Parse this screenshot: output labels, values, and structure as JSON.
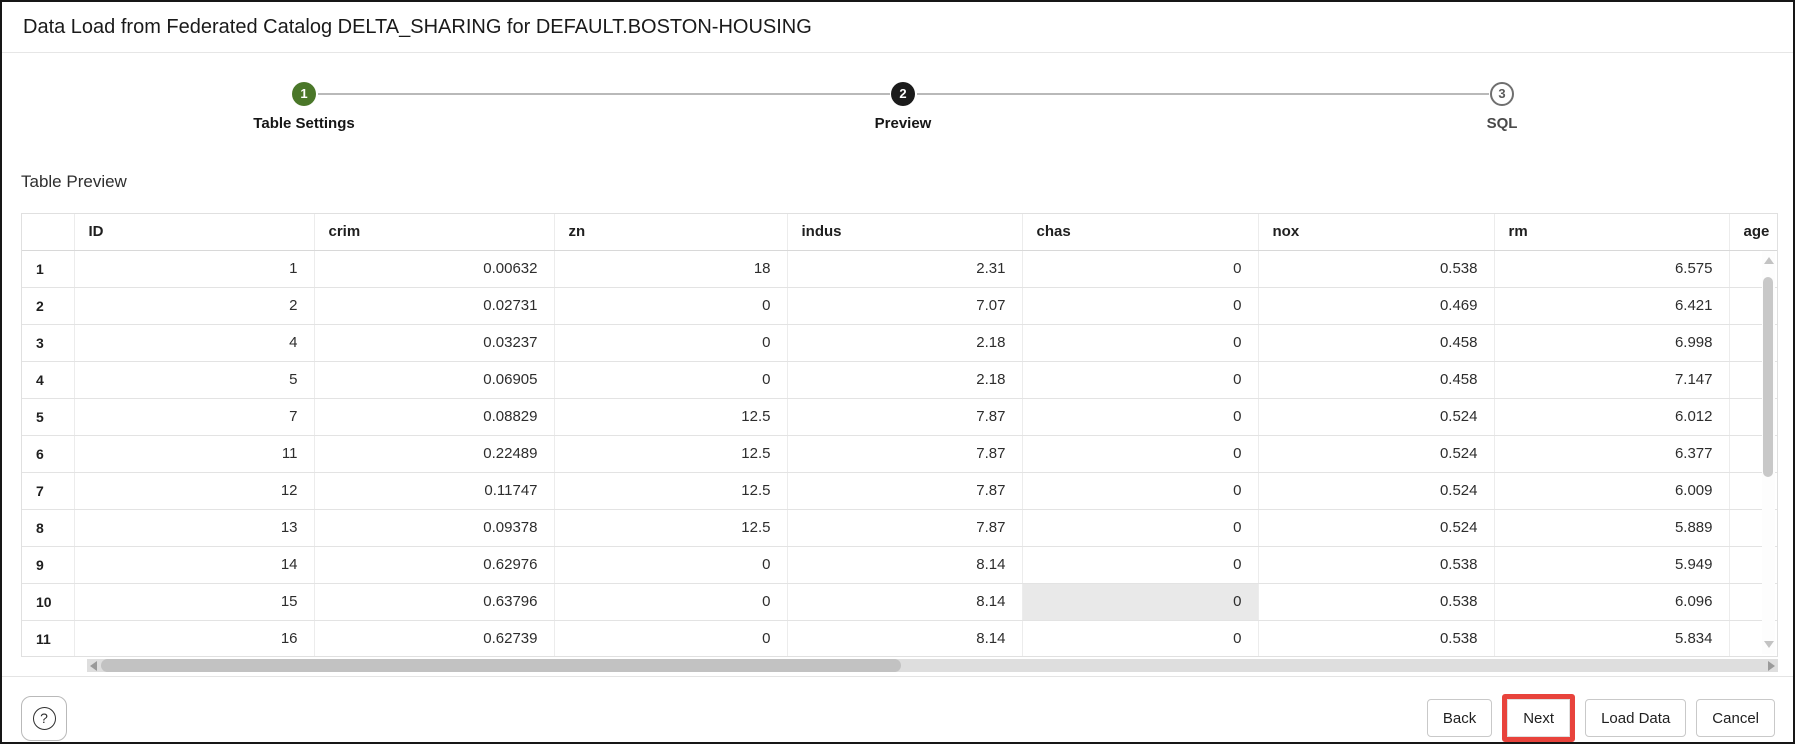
{
  "window": {
    "title": "Data Load from Federated Catalog DELTA_SHARING for DEFAULT.BOSTON-HOUSING"
  },
  "wizard": {
    "steps": [
      {
        "number": "1",
        "label": "Table Settings",
        "state": "complete"
      },
      {
        "number": "2",
        "label": "Preview",
        "state": "active"
      },
      {
        "number": "3",
        "label": "SQL",
        "state": "upcoming"
      }
    ]
  },
  "section": {
    "title": "Table Preview"
  },
  "table": {
    "columns": [
      "ID",
      "crim",
      "zn",
      "indus",
      "chas",
      "nox",
      "rm",
      "age"
    ],
    "rows": [
      {
        "n": "1",
        "cells": [
          "1",
          "0.00632",
          "18",
          "2.31",
          "0",
          "0.538",
          "6.575",
          ""
        ]
      },
      {
        "n": "2",
        "cells": [
          "2",
          "0.02731",
          "0",
          "7.07",
          "0",
          "0.469",
          "6.421",
          ""
        ]
      },
      {
        "n": "3",
        "cells": [
          "4",
          "0.03237",
          "0",
          "2.18",
          "0",
          "0.458",
          "6.998",
          ""
        ]
      },
      {
        "n": "4",
        "cells": [
          "5",
          "0.06905",
          "0",
          "2.18",
          "0",
          "0.458",
          "7.147",
          ""
        ]
      },
      {
        "n": "5",
        "cells": [
          "7",
          "0.08829",
          "12.5",
          "7.87",
          "0",
          "0.524",
          "6.012",
          ""
        ]
      },
      {
        "n": "6",
        "cells": [
          "11",
          "0.22489",
          "12.5",
          "7.87",
          "0",
          "0.524",
          "6.377",
          ""
        ]
      },
      {
        "n": "7",
        "cells": [
          "12",
          "0.11747",
          "12.5",
          "7.87",
          "0",
          "0.524",
          "6.009",
          ""
        ]
      },
      {
        "n": "8",
        "cells": [
          "13",
          "0.09378",
          "12.5",
          "7.87",
          "0",
          "0.524",
          "5.889",
          ""
        ]
      },
      {
        "n": "9",
        "cells": [
          "14",
          "0.62976",
          "0",
          "8.14",
          "0",
          "0.538",
          "5.949",
          ""
        ]
      },
      {
        "n": "10",
        "cells": [
          "15",
          "0.63796",
          "0",
          "8.14",
          "0",
          "0.538",
          "6.096",
          ""
        ]
      },
      {
        "n": "11",
        "cells": [
          "16",
          "0.62739",
          "0",
          "8.14",
          "0",
          "0.538",
          "5.834",
          ""
        ]
      }
    ],
    "highlighted_cell": {
      "row": 10,
      "column": "chas"
    }
  },
  "footer": {
    "help_icon": "?",
    "buttons": [
      {
        "label": "Back",
        "highlighted": false
      },
      {
        "label": "Next",
        "highlighted": true
      },
      {
        "label": "Load Data",
        "highlighted": false
      },
      {
        "label": "Cancel",
        "highlighted": false
      }
    ]
  },
  "colors": {
    "step_complete_green": "#4a7729",
    "step_active_black": "#1b1b1b",
    "annotation_red": "#e8433c",
    "highlight_cell_bg": "#e9e9e9"
  }
}
